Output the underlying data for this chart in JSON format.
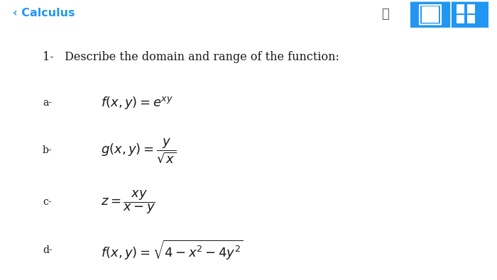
{
  "bg_color": "#ffffff",
  "header_line_color": "#dddddd",
  "header_text": "‹ Calculus",
  "header_text_color": "#2196F3",
  "header_fontsize": 11.5,
  "icon_rect_color": "#2196F3",
  "question_text": "1-   Describe the domain and range of the function:",
  "question_fontsize": 11.5,
  "items": [
    {
      "label": "a-",
      "formula": "$f(x, y) = e^{xy}$",
      "fontsize": 13
    },
    {
      "label": "b-",
      "formula": "$g(x, y) = \\dfrac{y}{\\sqrt{x}}$",
      "fontsize": 13
    },
    {
      "label": "c-",
      "formula": "$z = \\dfrac{xy}{x - y}$",
      "fontsize": 13
    },
    {
      "label": "d-",
      "formula": "$f(x, y) = \\sqrt{4 - x^2 - 4y^2}$",
      "fontsize": 13
    }
  ],
  "label_fontsize": 10,
  "text_color": "#1a1a1a"
}
